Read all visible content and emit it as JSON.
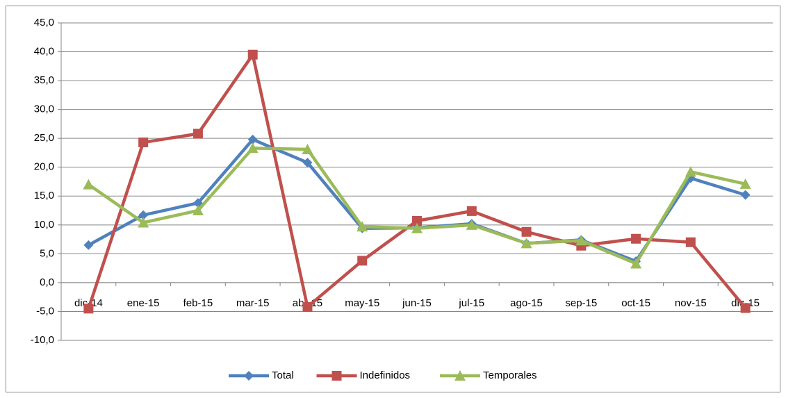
{
  "chart_data": {
    "type": "line",
    "categories": [
      "dic-14",
      "ene-15",
      "feb-15",
      "mar-15",
      "abr-15",
      "may-15",
      "jun-15",
      "jul-15",
      "ago-15",
      "sep-15",
      "oct-15",
      "nov-15",
      "dic-15"
    ],
    "series": [
      {
        "name": "Total",
        "color": "#4f81bd",
        "marker": "diamond",
        "values": [
          6.5,
          11.7,
          13.8,
          24.8,
          20.8,
          9.4,
          9.5,
          10.2,
          6.8,
          7.4,
          3.7,
          18.1,
          15.2
        ]
      },
      {
        "name": "Indefinidos",
        "color": "#c0504d",
        "marker": "square",
        "values": [
          -4.5,
          24.3,
          25.8,
          39.5,
          -4.2,
          3.8,
          10.7,
          12.4,
          8.8,
          6.4,
          7.6,
          7.0,
          -4.4
        ]
      },
      {
        "name": "Temporales",
        "color": "#9bbb59",
        "marker": "triangle",
        "values": [
          17.0,
          10.4,
          12.5,
          23.3,
          23.1,
          9.7,
          9.4,
          10.0,
          6.8,
          7.3,
          3.3,
          19.2,
          17.1
        ]
      }
    ],
    "ylim": [
      -10,
      45
    ],
    "yticks": [
      {
        "value": -10,
        "label": "-10,0"
      },
      {
        "value": -5,
        "label": "-5,0"
      },
      {
        "value": 0,
        "label": "0,0"
      },
      {
        "value": 5,
        "label": "5,0"
      },
      {
        "value": 10,
        "label": "10,0"
      },
      {
        "value": 15,
        "label": "15,0"
      },
      {
        "value": 20,
        "label": "20,0"
      },
      {
        "value": 25,
        "label": "25,0"
      },
      {
        "value": 30,
        "label": "30,0"
      },
      {
        "value": 35,
        "label": "35,0"
      },
      {
        "value": 40,
        "label": "40,0"
      },
      {
        "value": 45,
        "label": "45,0"
      }
    ],
    "grid": true,
    "legend": "bottom"
  }
}
